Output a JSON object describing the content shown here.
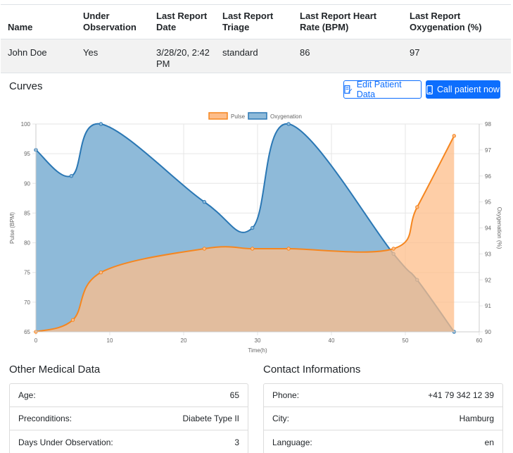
{
  "table": {
    "headers": [
      "Name",
      "Under Observation",
      "Last Report Date",
      "Last Report Triage",
      "Last Report Heart Rate (BPM)",
      "Last Report Oxygenation (%)"
    ],
    "row": [
      "John Doe",
      "Yes",
      "3/28/20, 2:42 PM",
      "standard",
      "86",
      "97"
    ]
  },
  "curves": {
    "title": "Curves",
    "edit_label": "Edit Patient Data",
    "call_label": "Call patient now"
  },
  "chart_data": {
    "type": "area",
    "xlabel": "Time(h)",
    "ylabel_left": "Pulse (BPM)",
    "ylabel_right": "Oxygenation (%)",
    "legend_position": "top",
    "grid": true,
    "xlim": [
      0,
      60
    ],
    "ylim_left": [
      65,
      100
    ],
    "ylim_right": [
      90,
      98
    ],
    "x_ticks": [
      0,
      10,
      20,
      30,
      40,
      50,
      60
    ],
    "y_left_ticks": [
      65,
      70,
      75,
      80,
      85,
      90,
      95,
      100
    ],
    "y_right_ticks": [
      90,
      91,
      92,
      93,
      94,
      95,
      96,
      97,
      98
    ],
    "series": [
      {
        "name": "Pulse",
        "axis": "left",
        "color": "#f5861f",
        "fill": "#fdbd8a",
        "x": [
          0,
          5,
          8.8,
          22.8,
          29.3,
          34.2,
          48.4,
          51.6,
          56.6
        ],
        "y": [
          65,
          67,
          75,
          79,
          79,
          79,
          79,
          86,
          98
        ]
      },
      {
        "name": "Oxygenation",
        "axis": "right",
        "color": "#2a77b4",
        "fill": "#8ebad9",
        "x": [
          0,
          4.8,
          8.8,
          22.8,
          29.3,
          34.2,
          48.4,
          51.6,
          56.6
        ],
        "y": [
          97,
          96,
          98,
          95,
          94,
          98,
          93,
          92,
          90
        ]
      }
    ]
  },
  "medical": {
    "title": "Other Medical Data",
    "rows": [
      {
        "label": "Age:",
        "value": "65"
      },
      {
        "label": "Preconditions:",
        "value": "Diabete Type II"
      },
      {
        "label": "Days Under Observation:",
        "value": "3"
      }
    ]
  },
  "contact": {
    "title": "Contact Informations",
    "rows": [
      {
        "label": "Phone:",
        "value": "+41 79 342 12 39"
      },
      {
        "label": "City:",
        "value": "Hamburg"
      },
      {
        "label": "Language:",
        "value": "en"
      }
    ]
  }
}
